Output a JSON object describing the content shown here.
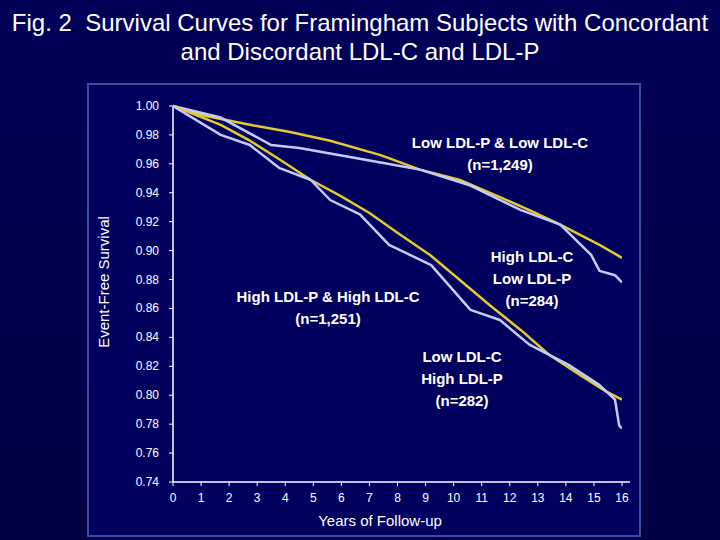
{
  "chart_data": {
    "type": "line",
    "title": "Fig. 2  Survival Curves for Framingham Subjects with Concordant and Discordant LDL-C and LDL-P",
    "xlabel": "Years of Follow-up",
    "ylabel": "Event-Free Survival",
    "xlim": [
      0,
      16
    ],
    "ylim": [
      0.74,
      1.0
    ],
    "xticks": [
      0,
      1,
      2,
      3,
      4,
      5,
      6,
      7,
      8,
      9,
      10,
      11,
      12,
      13,
      14,
      15,
      16
    ],
    "yticks": [
      0.74,
      0.76,
      0.78,
      {
        "value": 0.8,
        "label": "0.80"
      },
      0.82,
      0.84,
      0.86,
      0.88,
      {
        "value": 0.9,
        "label": "0.90"
      },
      0.92,
      0.94,
      0.96,
      0.98,
      {
        "value": 1.0,
        "label": "1.00"
      }
    ],
    "grid": false,
    "series": [
      {
        "color": "#e6c832",
        "x": [
          0,
          0.96,
          2.74,
          4.17,
          5.6,
          7.4,
          8.8,
          10.2,
          11.65,
          12.7,
          13.8,
          15.2,
          16
        ],
        "values": [
          1.0,
          0.994,
          0.987,
          0.982,
          0.976,
          0.966,
          0.956,
          0.949,
          0.937,
          0.928,
          0.918,
          0.904,
          0.895
        ]
      },
      {
        "color": "#c4ccff",
        "x": [
          0,
          1.7,
          3.5,
          4.5,
          7.4,
          8.8,
          10.6,
          12.4,
          13.8,
          14.9,
          15.2,
          15.75,
          16
        ],
        "values": [
          1.0,
          0.992,
          0.973,
          0.971,
          0.961,
          0.956,
          0.945,
          0.928,
          0.918,
          0.897,
          0.886,
          0.883,
          0.878
        ]
      },
      {
        "color": "#e6c832",
        "x": [
          0,
          1.7,
          2.74,
          3.8,
          4.9,
          5.95,
          7.0,
          8.1,
          9.16,
          10.2,
          11.3,
          12.4,
          13.4,
          14.5,
          15.4,
          16
        ],
        "values": [
          1.0,
          0.987,
          0.976,
          0.963,
          0.949,
          0.938,
          0.926,
          0.911,
          0.897,
          0.88,
          0.862,
          0.845,
          0.828,
          0.814,
          0.803,
          0.797
        ]
      },
      {
        "color": "#c4ccff",
        "x": [
          0,
          1.7,
          2.74,
          3.8,
          4.9,
          5.6,
          6.66,
          7.7,
          9.2,
          10.6,
          11.65,
          12.7,
          14.1,
          15.2,
          15.75,
          15.9,
          16
        ],
        "values": [
          1.0,
          0.98,
          0.973,
          0.957,
          0.949,
          0.935,
          0.925,
          0.904,
          0.89,
          0.859,
          0.852,
          0.835,
          0.821,
          0.807,
          0.797,
          0.779,
          0.777
        ]
      }
    ],
    "annotations": [
      [
        "Low LDL-P & Low LDL-C",
        "(n=1,249)"
      ],
      [
        "High LDL-C",
        "Low LDL-P",
        "(n=284)"
      ],
      [
        "High LDL-P & High LDL-C",
        "(n=1,251)"
      ],
      [
        "Low LDL-C",
        "High LDL-P",
        "(n=282)"
      ]
    ]
  }
}
